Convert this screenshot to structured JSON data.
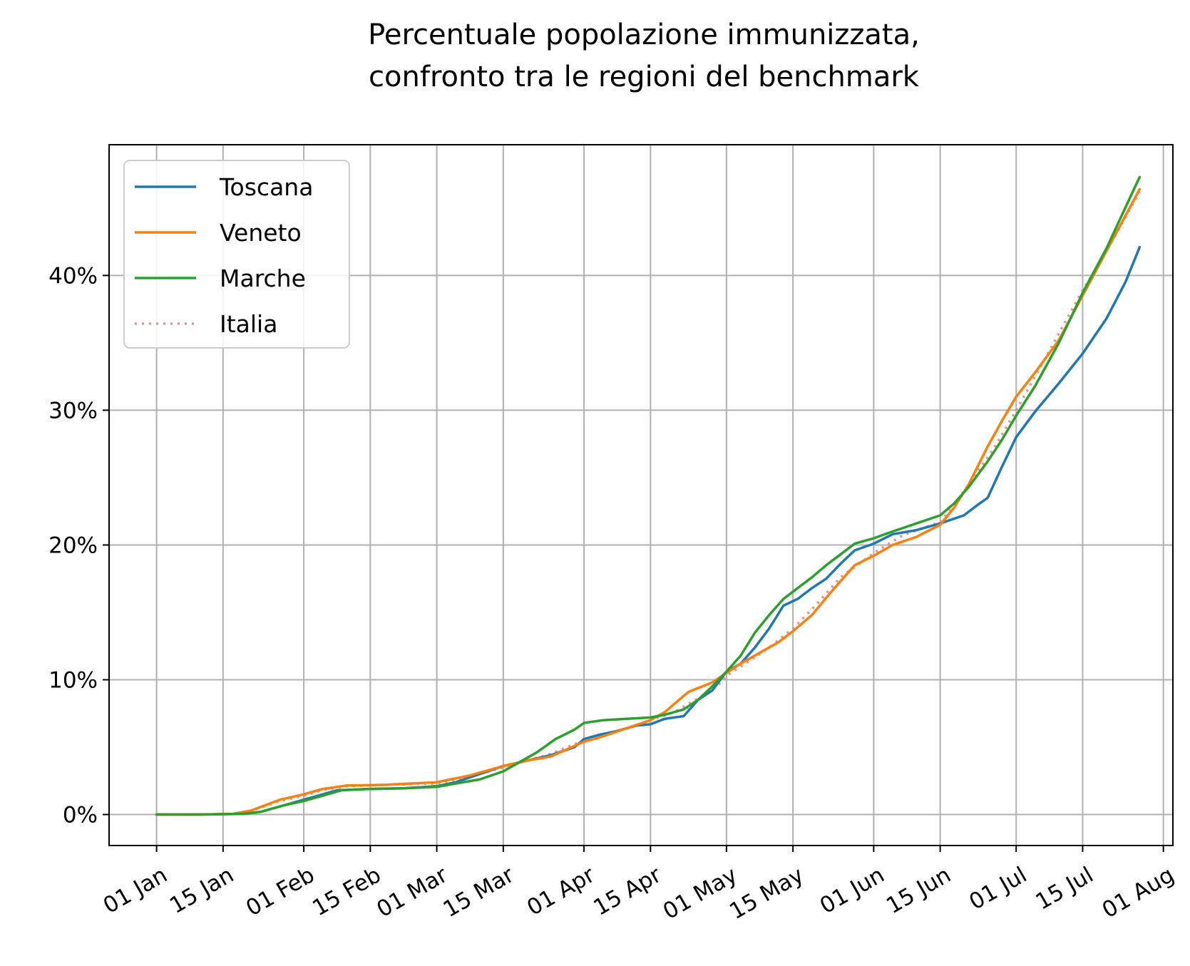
{
  "chart_data": {
    "type": "line",
    "title": [
      "Percentuale popolazione immunizzata,",
      "confronto tra le regioni del benchmark"
    ],
    "xlabel": "",
    "ylabel": "",
    "x_ticks": [
      "2021-01-01",
      "2021-01-15",
      "2021-02-01",
      "2021-02-15",
      "2021-03-01",
      "2021-03-15",
      "2021-04-01",
      "2021-04-15",
      "2021-05-01",
      "2021-05-15",
      "2021-06-01",
      "2021-06-15",
      "2021-07-01",
      "2021-07-15",
      "2021-08-01"
    ],
    "x_tick_labels": [
      "01 Jan",
      "15 Jan",
      "01 Feb",
      "15 Feb",
      "01 Mar",
      "15 Mar",
      "01 Apr",
      "15 Apr",
      "01 May",
      "15 May",
      "01 Jun",
      "15 Jun",
      "01 Jul",
      "15 Jul",
      "01 Aug"
    ],
    "xlim": [
      "2020-12-22",
      "2021-08-03"
    ],
    "y_ticks": [
      0,
      10,
      20,
      30,
      40
    ],
    "y_tick_labels": [
      "0%",
      "10%",
      "20%",
      "30%",
      "40%"
    ],
    "ylim": [
      -2.3,
      49.7
    ],
    "grid": true,
    "legend_position": "top-left",
    "series": [
      {
        "name": "Toscana",
        "color": "#1f77b4",
        "style": "solid",
        "points": [
          [
            "2021-01-01",
            0
          ],
          [
            "2021-01-10",
            0
          ],
          [
            "2021-01-19",
            0.05
          ],
          [
            "2021-01-23",
            0.2
          ],
          [
            "2021-01-28",
            0.7
          ],
          [
            "2021-02-01",
            1.1
          ],
          [
            "2021-02-05",
            1.5
          ],
          [
            "2021-02-08",
            1.8
          ],
          [
            "2021-02-15",
            1.9
          ],
          [
            "2021-02-22",
            1.95
          ],
          [
            "2021-03-01",
            2.1
          ],
          [
            "2021-03-05",
            2.4
          ],
          [
            "2021-03-10",
            3
          ],
          [
            "2021-03-15",
            3.6
          ],
          [
            "2021-03-20",
            4
          ],
          [
            "2021-03-25",
            4.4
          ],
          [
            "2021-03-30",
            5
          ],
          [
            "2021-04-01",
            5.6
          ],
          [
            "2021-04-04",
            5.9
          ],
          [
            "2021-04-08",
            6.2
          ],
          [
            "2021-04-12",
            6.6
          ],
          [
            "2021-04-15",
            6.7
          ],
          [
            "2021-04-18",
            7.1
          ],
          [
            "2021-04-22",
            7.3
          ],
          [
            "2021-04-25",
            8.5
          ],
          [
            "2021-04-28",
            9.2
          ],
          [
            "2021-05-01",
            10.6
          ],
          [
            "2021-05-04",
            11.2
          ],
          [
            "2021-05-07",
            12.4
          ],
          [
            "2021-05-10",
            13.8
          ],
          [
            "2021-05-13",
            15.5
          ],
          [
            "2021-05-16",
            16
          ],
          [
            "2021-05-19",
            16.8
          ],
          [
            "2021-05-22",
            17.5
          ],
          [
            "2021-05-25",
            18.6
          ],
          [
            "2021-05-28",
            19.6
          ],
          [
            "2021-06-01",
            20.1
          ],
          [
            "2021-06-05",
            20.8
          ],
          [
            "2021-06-10",
            21.1
          ],
          [
            "2021-06-15",
            21.6
          ],
          [
            "2021-06-20",
            22.2
          ],
          [
            "2021-06-23",
            23
          ],
          [
            "2021-06-25",
            23.5
          ],
          [
            "2021-06-28",
            25.8
          ],
          [
            "2021-07-01",
            28
          ],
          [
            "2021-07-05",
            29.9
          ],
          [
            "2021-07-10",
            32
          ],
          [
            "2021-07-15",
            34.2
          ],
          [
            "2021-07-20",
            36.8
          ],
          [
            "2021-07-24",
            39.5
          ],
          [
            "2021-07-27",
            42.1
          ]
        ]
      },
      {
        "name": "Veneto",
        "color": "#ff7f0e",
        "style": "solid",
        "points": [
          [
            "2021-01-01",
            0
          ],
          [
            "2021-01-10",
            0
          ],
          [
            "2021-01-17",
            0.05
          ],
          [
            "2021-01-21",
            0.3
          ],
          [
            "2021-01-27",
            1.1
          ],
          [
            "2021-02-01",
            1.5
          ],
          [
            "2021-02-05",
            1.9
          ],
          [
            "2021-02-10",
            2.15
          ],
          [
            "2021-02-18",
            2.2
          ],
          [
            "2021-03-01",
            2.4
          ],
          [
            "2021-03-08",
            2.9
          ],
          [
            "2021-03-15",
            3.6
          ],
          [
            "2021-03-20",
            4
          ],
          [
            "2021-03-25",
            4.3
          ],
          [
            "2021-04-01",
            5.4
          ],
          [
            "2021-04-05",
            5.8
          ],
          [
            "2021-04-10",
            6.4
          ],
          [
            "2021-04-15",
            7
          ],
          [
            "2021-04-18",
            7.6
          ],
          [
            "2021-04-23",
            9.1
          ],
          [
            "2021-04-28",
            9.8
          ],
          [
            "2021-05-01",
            10.5
          ],
          [
            "2021-05-04",
            11.2
          ],
          [
            "2021-05-08",
            12
          ],
          [
            "2021-05-12",
            12.8
          ],
          [
            "2021-05-15",
            13.6
          ],
          [
            "2021-05-19",
            14.8
          ],
          [
            "2021-05-23",
            16.5
          ],
          [
            "2021-05-28",
            18.5
          ],
          [
            "2021-06-01",
            19.2
          ],
          [
            "2021-06-05",
            20
          ],
          [
            "2021-06-10",
            20.6
          ],
          [
            "2021-06-15",
            21.5
          ],
          [
            "2021-06-18",
            22.8
          ],
          [
            "2021-06-21",
            24.5
          ],
          [
            "2021-06-25",
            27.3
          ],
          [
            "2021-06-28",
            29.2
          ],
          [
            "2021-07-01",
            31
          ],
          [
            "2021-07-05",
            32.8
          ],
          [
            "2021-07-10",
            35.2
          ],
          [
            "2021-07-15",
            38.5
          ],
          [
            "2021-07-20",
            41.8
          ],
          [
            "2021-07-27",
            46.4
          ]
        ]
      },
      {
        "name": "Marche",
        "color": "#2ca02c",
        "style": "solid",
        "points": [
          [
            "2021-01-01",
            0
          ],
          [
            "2021-01-10",
            0
          ],
          [
            "2021-01-19",
            0.05
          ],
          [
            "2021-01-23",
            0.2
          ],
          [
            "2021-01-28",
            0.7
          ],
          [
            "2021-02-01",
            1
          ],
          [
            "2021-02-05",
            1.4
          ],
          [
            "2021-02-09",
            1.8
          ],
          [
            "2021-02-15",
            1.9
          ],
          [
            "2021-02-22",
            1.95
          ],
          [
            "2021-03-01",
            2.05
          ],
          [
            "2021-03-05",
            2.3
          ],
          [
            "2021-03-10",
            2.6
          ],
          [
            "2021-03-15",
            3.2
          ],
          [
            "2021-03-18",
            3.8
          ],
          [
            "2021-03-22",
            4.6
          ],
          [
            "2021-03-26",
            5.6
          ],
          [
            "2021-03-30",
            6.3
          ],
          [
            "2021-04-01",
            6.8
          ],
          [
            "2021-04-05",
            7
          ],
          [
            "2021-04-10",
            7.1
          ],
          [
            "2021-04-15",
            7.2
          ],
          [
            "2021-04-18",
            7.4
          ],
          [
            "2021-04-22",
            7.8
          ],
          [
            "2021-04-25",
            8.5
          ],
          [
            "2021-04-28",
            9.5
          ],
          [
            "2021-05-01",
            10.6
          ],
          [
            "2021-05-04",
            11.8
          ],
          [
            "2021-05-07",
            13.5
          ],
          [
            "2021-05-10",
            14.8
          ],
          [
            "2021-05-13",
            16
          ],
          [
            "2021-05-16",
            16.8
          ],
          [
            "2021-05-19",
            17.6
          ],
          [
            "2021-05-22",
            18.5
          ],
          [
            "2021-05-25",
            19.3
          ],
          [
            "2021-05-28",
            20.1
          ],
          [
            "2021-06-01",
            20.5
          ],
          [
            "2021-06-05",
            21
          ],
          [
            "2021-06-10",
            21.6
          ],
          [
            "2021-06-15",
            22.2
          ],
          [
            "2021-06-18",
            23.1
          ],
          [
            "2021-06-21",
            24.3
          ],
          [
            "2021-06-25",
            26.2
          ],
          [
            "2021-06-28",
            27.8
          ],
          [
            "2021-07-01",
            29.6
          ],
          [
            "2021-07-05",
            31.8
          ],
          [
            "2021-07-10",
            35
          ],
          [
            "2021-07-15",
            38.7
          ],
          [
            "2021-07-20",
            42
          ],
          [
            "2021-07-25",
            45.8
          ],
          [
            "2021-07-27",
            47.3
          ]
        ]
      },
      {
        "name": "Italia",
        "color": "#e99090",
        "style": "dotted",
        "points": [
          [
            "2021-01-01",
            0
          ],
          [
            "2021-01-10",
            0
          ],
          [
            "2021-01-17",
            0.05
          ],
          [
            "2021-01-21",
            0.3
          ],
          [
            "2021-01-27",
            1
          ],
          [
            "2021-02-01",
            1.4
          ],
          [
            "2021-02-05",
            1.8
          ],
          [
            "2021-02-10",
            2.1
          ],
          [
            "2021-02-18",
            2.2
          ],
          [
            "2021-03-01",
            2.3
          ],
          [
            "2021-03-08",
            2.8
          ],
          [
            "2021-03-15",
            3.5
          ],
          [
            "2021-03-20",
            4
          ],
          [
            "2021-03-25",
            4.5
          ],
          [
            "2021-04-01",
            5.5
          ],
          [
            "2021-04-05",
            5.9
          ],
          [
            "2021-04-10",
            6.4
          ],
          [
            "2021-04-15",
            7
          ],
          [
            "2021-04-20",
            7.6
          ],
          [
            "2021-04-25",
            8.6
          ],
          [
            "2021-04-29",
            9.5
          ],
          [
            "2021-05-01",
            10.3
          ],
          [
            "2021-05-05",
            11.2
          ],
          [
            "2021-05-10",
            12.4
          ],
          [
            "2021-05-15",
            13.8
          ],
          [
            "2021-05-20",
            15.6
          ],
          [
            "2021-05-25",
            17.6
          ],
          [
            "2021-06-01",
            19.4
          ],
          [
            "2021-06-07",
            20.7
          ],
          [
            "2021-06-15",
            21.7
          ],
          [
            "2021-06-18",
            23
          ],
          [
            "2021-06-22",
            25
          ],
          [
            "2021-06-26",
            27
          ],
          [
            "2021-07-01",
            30
          ],
          [
            "2021-07-05",
            32.5
          ],
          [
            "2021-07-10",
            35.7
          ],
          [
            "2021-07-15",
            38.9
          ],
          [
            "2021-07-20",
            41.8
          ],
          [
            "2021-07-27",
            46.2
          ]
        ]
      }
    ]
  }
}
